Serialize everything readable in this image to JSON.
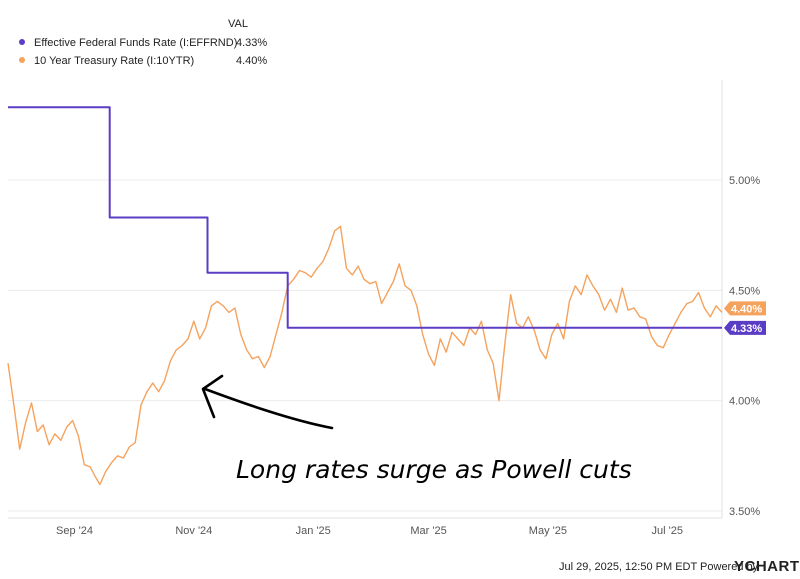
{
  "legend": {
    "header": "VAL",
    "items": [
      {
        "name": "Effective Federal Funds Rate (I:EFFRND)",
        "value": "4.33%",
        "color": "#5b3cc4"
      },
      {
        "name": "10 Year Treasury Rate (I:10YTR)",
        "value": "4.40%",
        "color": "#f5a25d"
      }
    ]
  },
  "annotation": {
    "text": "Long rates surge as Powell cuts"
  },
  "footer": {
    "timestamp": "Jul 29, 2025, 12:50 PM EDT Powered by",
    "brand": "YCHARTS"
  },
  "chart_data": {
    "type": "line",
    "x_range": [
      "2024-07-29",
      "2025-07-29"
    ],
    "ylim": [
      3.5,
      5.5
    ],
    "yticks": [
      {
        "value": 5.0,
        "label": "5.00%"
      },
      {
        "value": 4.5,
        "label": "4.50%"
      },
      {
        "value": 4.0,
        "label": "4.00%"
      },
      {
        "value": 3.5,
        "label": "3.50%"
      }
    ],
    "xticks": [
      {
        "date": "2024-09-01",
        "label": "Sep '24"
      },
      {
        "date": "2024-11-01",
        "label": "Nov '24"
      },
      {
        "date": "2025-01-01",
        "label": "Jan '25"
      },
      {
        "date": "2025-03-01",
        "label": "Mar '25"
      },
      {
        "date": "2025-05-01",
        "label": "May '25"
      },
      {
        "date": "2025-07-01",
        "label": "Jul '25"
      }
    ],
    "grid": "horizontal",
    "series": [
      {
        "name": "Effective Federal Funds Rate (I:EFFRND)",
        "color": "#5b3cc4",
        "step": true,
        "end_label": "4.33%",
        "points": [
          [
            "2024-07-29",
            5.33
          ],
          [
            "2024-09-19",
            5.33
          ],
          [
            "2024-09-19",
            4.83
          ],
          [
            "2024-11-08",
            4.83
          ],
          [
            "2024-11-08",
            4.58
          ],
          [
            "2024-12-19",
            4.58
          ],
          [
            "2024-12-19",
            4.33
          ],
          [
            "2025-07-29",
            4.33
          ]
        ]
      },
      {
        "name": "10 Year Treasury Rate (I:10YTR)",
        "color": "#f5a25d",
        "step": false,
        "end_label": "4.40%",
        "points": [
          [
            "2024-07-29",
            4.17
          ],
          [
            "2024-08-01",
            3.98
          ],
          [
            "2024-08-04",
            3.78
          ],
          [
            "2024-08-07",
            3.9
          ],
          [
            "2024-08-10",
            3.99
          ],
          [
            "2024-08-13",
            3.86
          ],
          [
            "2024-08-16",
            3.89
          ],
          [
            "2024-08-19",
            3.8
          ],
          [
            "2024-08-22",
            3.85
          ],
          [
            "2024-08-25",
            3.82
          ],
          [
            "2024-08-28",
            3.88
          ],
          [
            "2024-08-31",
            3.91
          ],
          [
            "2024-09-03",
            3.84
          ],
          [
            "2024-09-06",
            3.71
          ],
          [
            "2024-09-09",
            3.7
          ],
          [
            "2024-09-12",
            3.65
          ],
          [
            "2024-09-14",
            3.62
          ],
          [
            "2024-09-17",
            3.68
          ],
          [
            "2024-09-20",
            3.72
          ],
          [
            "2024-09-23",
            3.75
          ],
          [
            "2024-09-26",
            3.74
          ],
          [
            "2024-09-29",
            3.79
          ],
          [
            "2024-10-02",
            3.81
          ],
          [
            "2024-10-05",
            3.98
          ],
          [
            "2024-10-08",
            4.04
          ],
          [
            "2024-10-11",
            4.08
          ],
          [
            "2024-10-14",
            4.04
          ],
          [
            "2024-10-17",
            4.09
          ],
          [
            "2024-10-20",
            4.18
          ],
          [
            "2024-10-23",
            4.23
          ],
          [
            "2024-10-26",
            4.25
          ],
          [
            "2024-10-29",
            4.28
          ],
          [
            "2024-11-01",
            4.36
          ],
          [
            "2024-11-04",
            4.28
          ],
          [
            "2024-11-07",
            4.33
          ],
          [
            "2024-11-10",
            4.43
          ],
          [
            "2024-11-13",
            4.45
          ],
          [
            "2024-11-16",
            4.43
          ],
          [
            "2024-11-19",
            4.4
          ],
          [
            "2024-11-22",
            4.42
          ],
          [
            "2024-11-25",
            4.3
          ],
          [
            "2024-11-28",
            4.23
          ],
          [
            "2024-12-01",
            4.19
          ],
          [
            "2024-12-04",
            4.2
          ],
          [
            "2024-12-07",
            4.15
          ],
          [
            "2024-12-10",
            4.2
          ],
          [
            "2024-12-13",
            4.3
          ],
          [
            "2024-12-16",
            4.4
          ],
          [
            "2024-12-19",
            4.52
          ],
          [
            "2024-12-22",
            4.55
          ],
          [
            "2024-12-25",
            4.59
          ],
          [
            "2024-12-28",
            4.58
          ],
          [
            "2024-12-31",
            4.56
          ],
          [
            "2025-01-03",
            4.6
          ],
          [
            "2025-01-06",
            4.63
          ],
          [
            "2025-01-09",
            4.69
          ],
          [
            "2025-01-12",
            4.77
          ],
          [
            "2025-01-15",
            4.79
          ],
          [
            "2025-01-18",
            4.6
          ],
          [
            "2025-01-21",
            4.57
          ],
          [
            "2025-01-24",
            4.61
          ],
          [
            "2025-01-27",
            4.55
          ],
          [
            "2025-01-30",
            4.53
          ],
          [
            "2025-02-02",
            4.54
          ],
          [
            "2025-02-05",
            4.44
          ],
          [
            "2025-02-08",
            4.49
          ],
          [
            "2025-02-11",
            4.54
          ],
          [
            "2025-02-14",
            4.62
          ],
          [
            "2025-02-17",
            4.52
          ],
          [
            "2025-02-20",
            4.5
          ],
          [
            "2025-02-23",
            4.43
          ],
          [
            "2025-02-26",
            4.3
          ],
          [
            "2025-03-01",
            4.21
          ],
          [
            "2025-03-04",
            4.16
          ],
          [
            "2025-03-07",
            4.28
          ],
          [
            "2025-03-10",
            4.22
          ],
          [
            "2025-03-13",
            4.31
          ],
          [
            "2025-03-16",
            4.28
          ],
          [
            "2025-03-19",
            4.25
          ],
          [
            "2025-03-22",
            4.33
          ],
          [
            "2025-03-25",
            4.3
          ],
          [
            "2025-03-28",
            4.36
          ],
          [
            "2025-03-31",
            4.23
          ],
          [
            "2025-04-03",
            4.17
          ],
          [
            "2025-04-06",
            4.0
          ],
          [
            "2025-04-09",
            4.26
          ],
          [
            "2025-04-12",
            4.48
          ],
          [
            "2025-04-15",
            4.35
          ],
          [
            "2025-04-18",
            4.33
          ],
          [
            "2025-04-21",
            4.38
          ],
          [
            "2025-04-24",
            4.32
          ],
          [
            "2025-04-27",
            4.23
          ],
          [
            "2025-04-30",
            4.19
          ],
          [
            "2025-05-03",
            4.3
          ],
          [
            "2025-05-06",
            4.35
          ],
          [
            "2025-05-09",
            4.28
          ],
          [
            "2025-05-12",
            4.45
          ],
          [
            "2025-05-15",
            4.52
          ],
          [
            "2025-05-18",
            4.48
          ],
          [
            "2025-05-21",
            4.57
          ],
          [
            "2025-05-24",
            4.52
          ],
          [
            "2025-05-27",
            4.48
          ],
          [
            "2025-05-30",
            4.41
          ],
          [
            "2025-06-02",
            4.46
          ],
          [
            "2025-06-05",
            4.4
          ],
          [
            "2025-06-08",
            4.51
          ],
          [
            "2025-06-11",
            4.41
          ],
          [
            "2025-06-14",
            4.42
          ],
          [
            "2025-06-17",
            4.38
          ],
          [
            "2025-06-20",
            4.37
          ],
          [
            "2025-06-23",
            4.29
          ],
          [
            "2025-06-26",
            4.25
          ],
          [
            "2025-06-29",
            4.24
          ],
          [
            "2025-07-02",
            4.3
          ],
          [
            "2025-07-05",
            4.35
          ],
          [
            "2025-07-08",
            4.4
          ],
          [
            "2025-07-11",
            4.44
          ],
          [
            "2025-07-14",
            4.45
          ],
          [
            "2025-07-17",
            4.49
          ],
          [
            "2025-07-20",
            4.42
          ],
          [
            "2025-07-23",
            4.38
          ],
          [
            "2025-07-26",
            4.43
          ],
          [
            "2025-07-29",
            4.4
          ]
        ]
      }
    ]
  }
}
